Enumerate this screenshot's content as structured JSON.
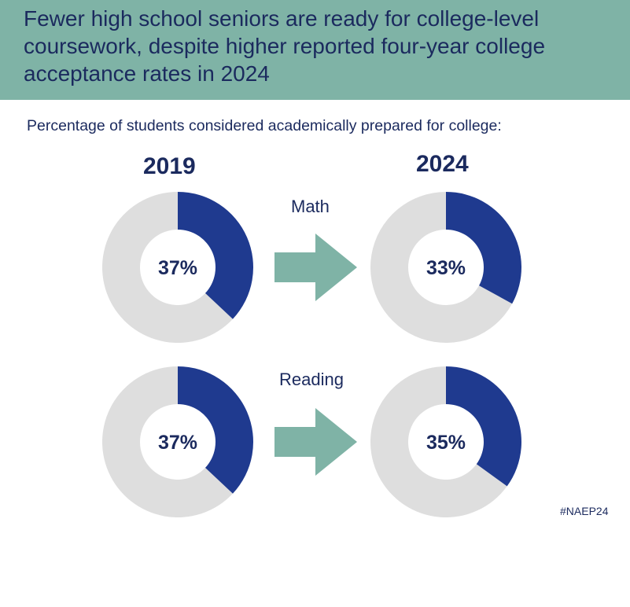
{
  "title": "Fewer high school seniors are ready for college-level coursework, despite higher reported four-year college acceptance rates in 2024",
  "subtitle": "Percentage of students considered academically prepared for college:",
  "years": [
    "2019",
    "2024"
  ],
  "hashtag": "#NAEP24",
  "colors": {
    "header": "#7fb3a6",
    "prepared": "#1f3a8f",
    "remainder": "#dedede",
    "arrow": "#7fb3a6",
    "text": "#1b2a5e"
  },
  "chart_data": {
    "type": "pie",
    "donut": true,
    "categories": [
      "2019",
      "2024"
    ],
    "series": [
      {
        "name": "Math",
        "values": [
          37,
          33
        ],
        "labels": [
          "37%",
          "33%"
        ]
      },
      {
        "name": "Reading",
        "values": [
          37,
          35
        ],
        "labels": [
          "37%",
          "35%"
        ]
      }
    ]
  }
}
